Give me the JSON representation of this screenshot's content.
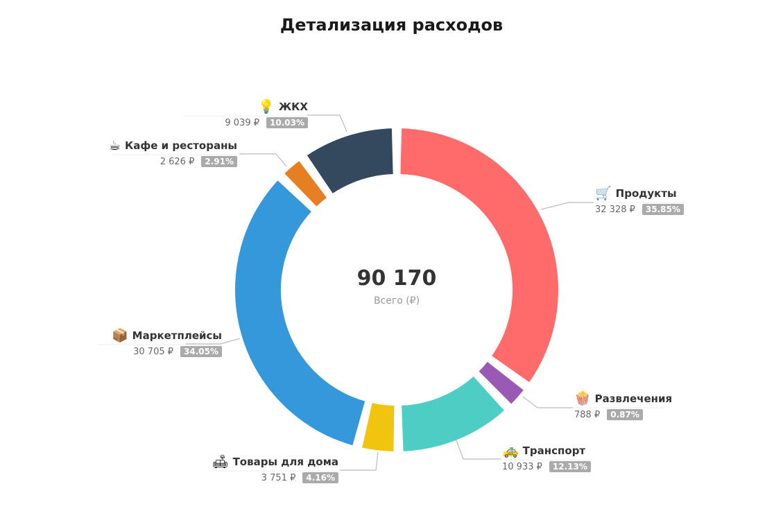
{
  "chart_data": {
    "type": "pie",
    "title": "Детализация расходов",
    "center": {
      "total": "90 170",
      "caption": "Всего (₽)"
    },
    "currency": "₽",
    "slices": [
      {
        "name": "Продукты",
        "value": 32328,
        "amount_label": "32 328 ₽",
        "percent_label": "35.85%",
        "color": "#FF6B6B",
        "icon": "shopping-cart-icon",
        "glyph": "🛒"
      },
      {
        "name": "Развлечения",
        "value": 788,
        "amount_label": "788 ₽",
        "percent_label": "0.87%",
        "color": "#9B59B6",
        "icon": "popcorn-icon",
        "glyph": "🍿"
      },
      {
        "name": "Транспорт",
        "value": 10933,
        "amount_label": "10 933 ₽",
        "percent_label": "12.13%",
        "color": "#4ECDC4",
        "icon": "taxi-icon",
        "glyph": "🚕"
      },
      {
        "name": "Товары для дома",
        "value": 3751,
        "amount_label": "3 751 ₽",
        "percent_label": "4.16%",
        "color": "#F1C40F",
        "icon": "couch-icon",
        "glyph": "🛋"
      },
      {
        "name": "Маркетплейсы",
        "value": 30705,
        "amount_label": "30 705 ₽",
        "percent_label": "34.05%",
        "color": "#3498DB",
        "icon": "package-icon",
        "glyph": "📦"
      },
      {
        "name": "Кафе и рестораны",
        "value": 2626,
        "amount_label": "2 626 ₽",
        "percent_label": "2.91%",
        "color": "#E67E22",
        "icon": "coffee-cup-icon",
        "glyph": "☕"
      },
      {
        "name": "ЖКХ",
        "value": 9039,
        "amount_label": "9 039 ₽",
        "percent_label": "10.03%",
        "color": "#34495E",
        "icon": "light-bulb-icon",
        "glyph": "💡"
      }
    ]
  }
}
